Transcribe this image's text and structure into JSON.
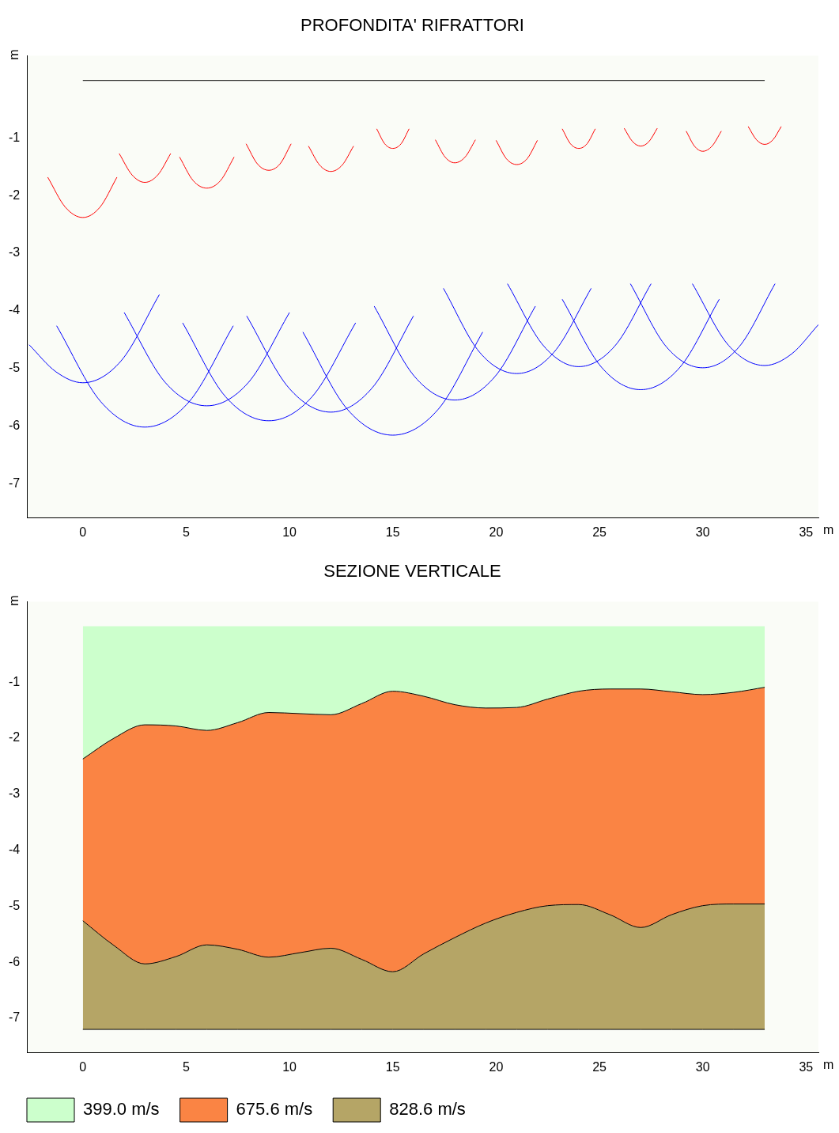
{
  "chart_data": [
    {
      "type": "line",
      "title": "PROFONDITA' RIFRATTORI",
      "xlabel": "m",
      "ylabel": "m",
      "xlim": [
        -2.7,
        35.6
      ],
      "ylim": [
        -7.6,
        0.43
      ],
      "xticks": [
        0,
        5,
        10,
        15,
        20,
        25,
        30,
        35
      ],
      "yticks": [
        -1,
        -2,
        -3,
        -4,
        -5,
        -6,
        -7
      ],
      "grid": false,
      "legend": false,
      "marker": "none",
      "line_style": "solid",
      "series": [
        {
          "color": "#000000",
          "x": [
            0,
            33
          ],
          "values": [
            0,
            0
          ]
        },
        {
          "color": "#ff0000",
          "x": [
            -1.7,
            -0.85,
            0,
            0.83,
            1.65
          ],
          "values": [
            -1.68,
            -2.2,
            -2.38,
            -2.2,
            -1.68
          ]
        },
        {
          "color": "#ff0000",
          "x": [
            1.76,
            2.38,
            3,
            3.63,
            4.25
          ],
          "values": [
            -1.27,
            -1.64,
            -1.77,
            -1.64,
            -1.27
          ]
        },
        {
          "color": "#ff0000",
          "x": [
            4.68,
            5.34,
            6,
            6.66,
            7.32
          ],
          "values": [
            -1.33,
            -1.74,
            -1.87,
            -1.74,
            -1.33
          ]
        },
        {
          "color": "#ff0000",
          "x": [
            7.9,
            8.45,
            9,
            9.54,
            10.08
          ],
          "values": [
            -1.1,
            -1.45,
            -1.56,
            -1.45,
            -1.1
          ]
        },
        {
          "color": "#ff0000",
          "x": [
            10.92,
            11.46,
            12,
            12.55,
            13.1
          ],
          "values": [
            -1.14,
            -1.47,
            -1.58,
            -1.47,
            -1.14
          ]
        },
        {
          "color": "#ff0000",
          "x": [
            14.22,
            14.61,
            15,
            15.4,
            15.79
          ],
          "values": [
            -0.84,
            -1.1,
            -1.18,
            -1.1,
            -0.84
          ]
        },
        {
          "color": "#ff0000",
          "x": [
            17.06,
            17.53,
            18,
            18.5,
            19
          ],
          "values": [
            -1.03,
            -1.33,
            -1.43,
            -1.33,
            -1.03
          ]
        },
        {
          "color": "#ff0000",
          "x": [
            20,
            20.5,
            21,
            21.5,
            22
          ],
          "values": [
            -1.04,
            -1.36,
            -1.46,
            -1.36,
            -1.04
          ]
        },
        {
          "color": "#ff0000",
          "x": [
            23.2,
            23.6,
            24,
            24.4,
            24.8
          ],
          "values": [
            -0.84,
            -1.1,
            -1.18,
            -1.1,
            -0.84
          ]
        },
        {
          "color": "#ff0000",
          "x": [
            26.2,
            26.6,
            27,
            27.4,
            27.8
          ],
          "values": [
            -0.83,
            -1.06,
            -1.14,
            -1.06,
            -0.83
          ]
        },
        {
          "color": "#ff0000",
          "x": [
            29.2,
            29.6,
            30,
            30.45,
            30.9
          ],
          "values": [
            -0.88,
            -1.14,
            -1.23,
            -1.14,
            -0.88
          ]
        },
        {
          "color": "#ff0000",
          "x": [
            32.2,
            32.6,
            33,
            33.4,
            33.8
          ],
          "values": [
            -0.8,
            -1.03,
            -1.11,
            -1.03,
            -0.8
          ]
        },
        {
          "color": "#0000ff",
          "x": [
            -2.6,
            -1.3,
            0,
            1.85,
            3.7
          ],
          "values": [
            -4.59,
            -5.06,
            -5.25,
            -4.87,
            -3.72
          ]
        },
        {
          "color": "#0000ff",
          "x": [
            -1.27,
            0.87,
            3,
            5.14,
            7.28
          ],
          "values": [
            -4.26,
            -5.58,
            -6.02,
            -5.58,
            -4.26
          ]
        },
        {
          "color": "#0000ff",
          "x": [
            2,
            4,
            6,
            8,
            10
          ],
          "values": [
            -4.03,
            -5.25,
            -5.65,
            -5.25,
            -4.03
          ]
        },
        {
          "color": "#0000ff",
          "x": [
            4.83,
            6.9,
            9,
            11.1,
            13.2
          ],
          "values": [
            -4.21,
            -5.49,
            -5.91,
            -5.49,
            -4.21
          ]
        },
        {
          "color": "#0000ff",
          "x": [
            7.93,
            9.97,
            12,
            14,
            16
          ],
          "values": [
            -4.09,
            -5.34,
            -5.76,
            -5.34,
            -4.09
          ]
        },
        {
          "color": "#0000ff",
          "x": [
            10.65,
            12.8,
            15,
            17.2,
            19.35
          ],
          "values": [
            -4.37,
            -5.71,
            -6.16,
            -5.71,
            -4.37
          ]
        },
        {
          "color": "#0000ff",
          "x": [
            14.1,
            16.05,
            18,
            19.95,
            21.9
          ],
          "values": [
            -3.92,
            -5.14,
            -5.55,
            -5.14,
            -3.92
          ]
        },
        {
          "color": "#0000ff",
          "x": [
            17.45,
            19.2,
            21,
            22.8,
            24.6
          ],
          "values": [
            -3.61,
            -4.72,
            -5.09,
            -4.72,
            -3.61
          ]
        },
        {
          "color": "#0000ff",
          "x": [
            20.55,
            22.3,
            24,
            25.75,
            27.5
          ],
          "values": [
            -3.53,
            -4.61,
            -4.97,
            -4.61,
            -3.53
          ]
        },
        {
          "color": "#0000ff",
          "x": [
            23.2,
            25.1,
            27,
            28.9,
            30.8
          ],
          "values": [
            -3.8,
            -4.98,
            -5.37,
            -4.98,
            -3.8
          ]
        },
        {
          "color": "#0000ff",
          "x": [
            26.5,
            28.25,
            30,
            31.75,
            33.5
          ],
          "values": [
            -3.53,
            -4.63,
            -4.99,
            -4.63,
            -3.53
          ]
        },
        {
          "color": "#0000ff",
          "x": [
            29.5,
            31.25,
            33,
            34.3,
            35.6
          ],
          "values": [
            -3.53,
            -4.6,
            -4.95,
            -4.75,
            -4.24
          ]
        }
      ]
    },
    {
      "type": "area",
      "title": "SEZIONE VERTICALE",
      "xlabel": "m",
      "ylabel": "m",
      "xlim": [
        -2.7,
        35.6
      ],
      "ylim": [
        -7.62,
        0.44
      ],
      "xticks": [
        0,
        5,
        10,
        15,
        20,
        25,
        30,
        35
      ],
      "yticks": [
        -1,
        -2,
        -3,
        -4,
        -5,
        -6,
        -7
      ],
      "grid": false,
      "legend": "bottom left",
      "stacked": true,
      "x": [
        0,
        1.5,
        3,
        4.5,
        6,
        7.5,
        9,
        10.5,
        12,
        13.5,
        15,
        16.5,
        18,
        19.5,
        21,
        22.5,
        24,
        25.5,
        27,
        28.5,
        30,
        31.5,
        33
      ],
      "series": [
        {
          "name": "399.0 m/s",
          "color": "#ccffcc",
          "values": [
            -2.37,
            -2.0,
            -1.76,
            -1.78,
            -1.86,
            -1.72,
            -1.54,
            -1.56,
            -1.58,
            -1.38,
            -1.16,
            -1.25,
            -1.4,
            -1.46,
            -1.45,
            -1.3,
            -1.16,
            -1.12,
            -1.12,
            -1.17,
            -1.22,
            -1.18,
            -1.09
          ]
        },
        {
          "name": "675.6 m/s",
          "color": "#fa8444",
          "values": [
            -2.89,
            -3.7,
            -4.27,
            -4.12,
            -3.83,
            -4.05,
            -4.37,
            -4.27,
            -4.17,
            -4.57,
            -5.01,
            -4.6,
            -4.16,
            -3.84,
            -3.66,
            -3.69,
            -3.81,
            -4.03,
            -4.26,
            -3.98,
            -3.77,
            -3.78,
            -3.87
          ]
        },
        {
          "name": "828.6 m/s",
          "color": "#b5a566",
          "values": [
            -1.94,
            -1.5,
            -1.17,
            -1.3,
            -1.51,
            -1.43,
            -1.29,
            -1.37,
            -1.45,
            -1.25,
            -1.03,
            -1.35,
            -1.64,
            -1.9,
            -2.09,
            -2.21,
            -2.23,
            -2.05,
            -1.82,
            -2.05,
            -2.21,
            -2.24,
            -2.24
          ]
        }
      ]
    }
  ]
}
